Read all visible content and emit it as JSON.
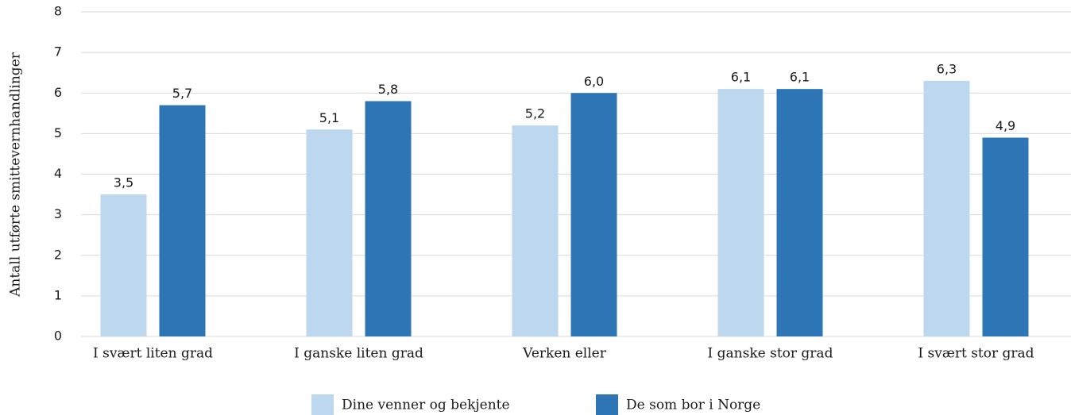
{
  "chart_data": {
    "type": "bar",
    "ylabel": "Antall utførte smittevernhandlinger",
    "categories": [
      "I svært liten grad",
      "I ganske liten grad",
      "Verken eller",
      "I ganske stor grad",
      "I svært stor grad"
    ],
    "series": [
      {
        "name": "Dine venner og bekjente",
        "color": "#bdd7ee",
        "values": [
          3.5,
          5.1,
          5.2,
          6.1,
          6.3
        ],
        "value_labels": [
          "3,5",
          "5,1",
          "5,2",
          "6,1",
          "6,3"
        ]
      },
      {
        "name": "De som bor i Norge",
        "color": "#2e75b6",
        "values": [
          5.7,
          5.8,
          6.0,
          6.1,
          4.9
        ],
        "value_labels": [
          "5,7",
          "5,8",
          "6,0",
          "6,1",
          "4,9"
        ]
      }
    ],
    "ylim": [
      0,
      8
    ],
    "yticks": [
      0,
      1,
      2,
      3,
      4,
      5,
      6,
      7,
      8
    ],
    "grid": true,
    "legend": "bottom"
  }
}
